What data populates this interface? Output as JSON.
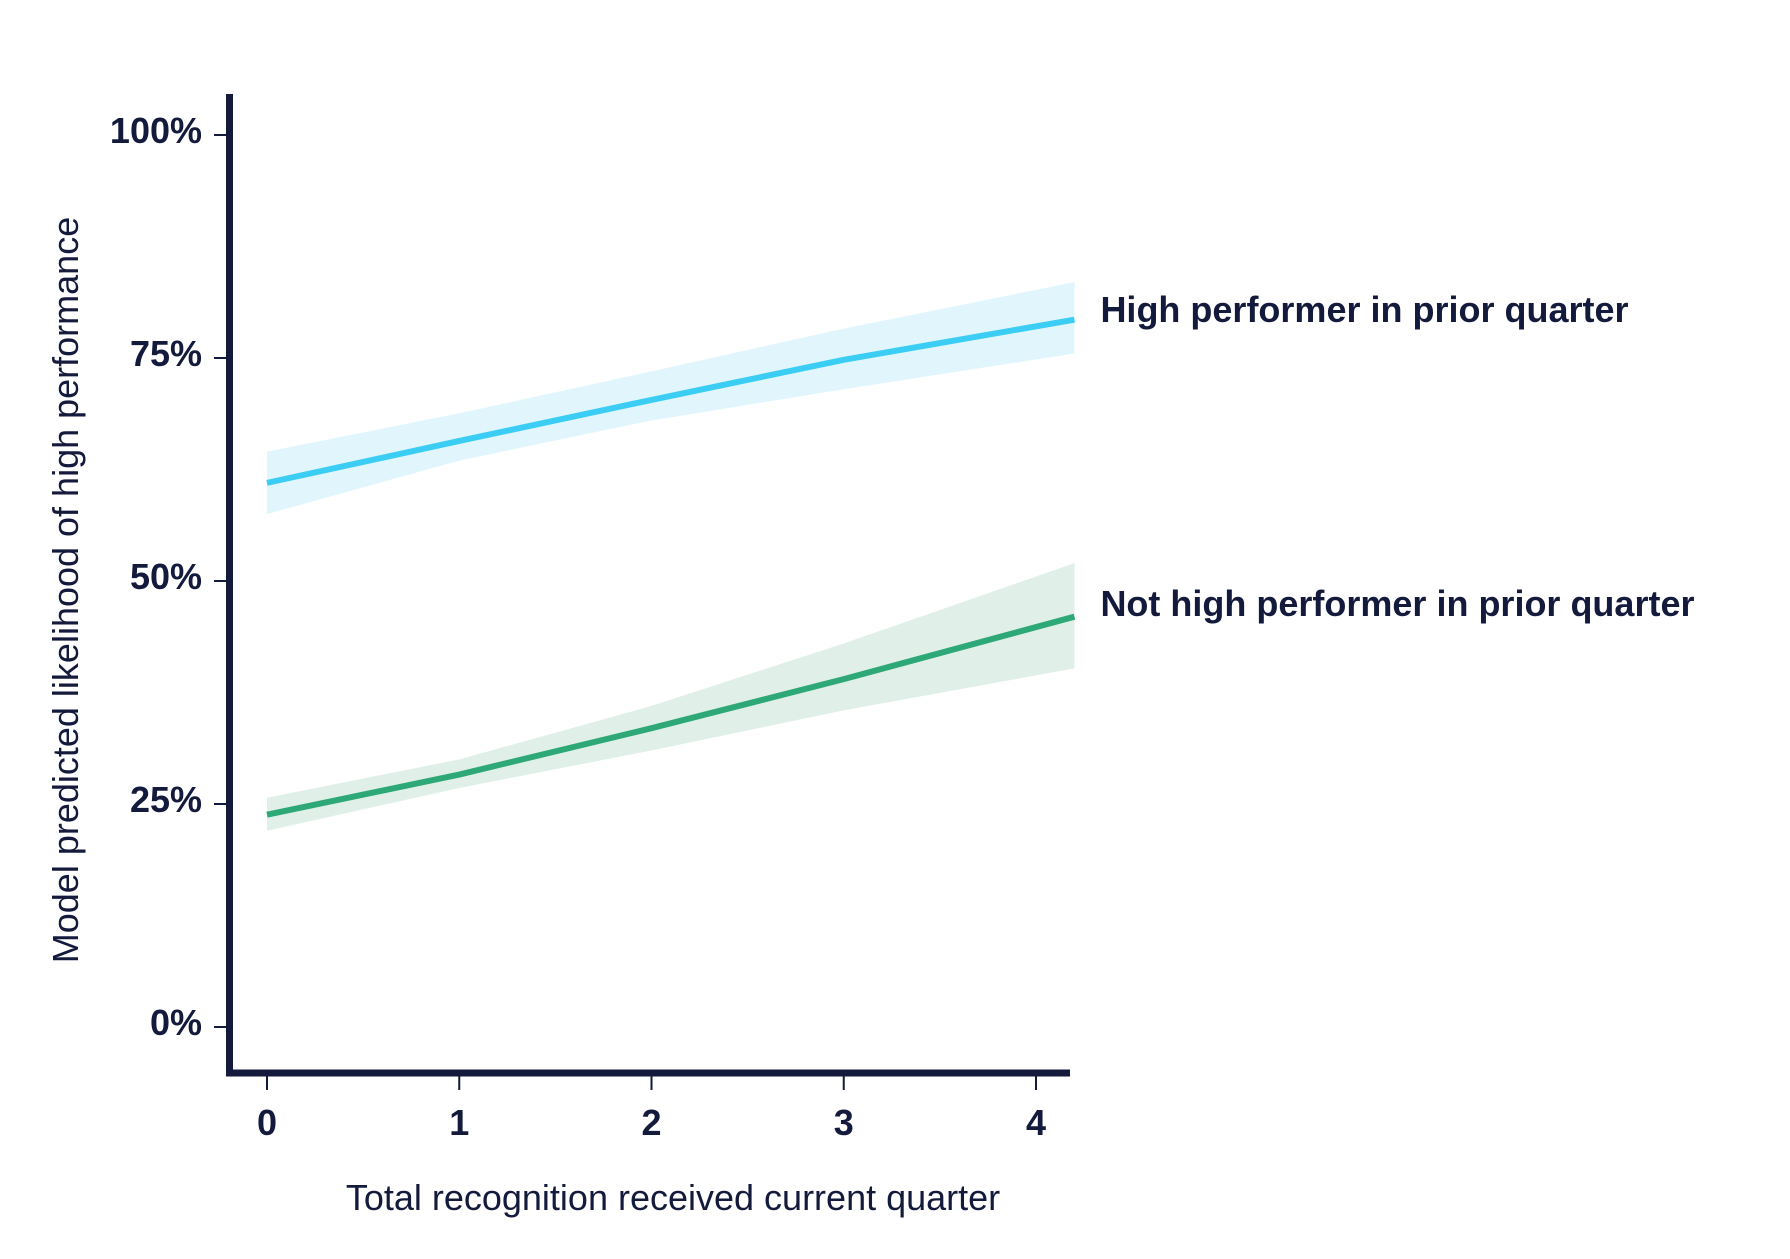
{
  "chart_data": {
    "type": "line",
    "title": "",
    "xlabel": "Total recognition received current quarter",
    "ylabel": "Model predicted likelihood of high performance",
    "xlim": [
      -0.2,
      4.2
    ],
    "ylim": [
      -5,
      105
    ],
    "x_ticks": [
      "0",
      "1",
      "2",
      "3",
      "4"
    ],
    "y_ticks": [
      "0%",
      "25%",
      "50%",
      "75%",
      "100%"
    ],
    "y_tick_values": [
      0,
      25,
      50,
      75,
      100
    ],
    "grid": false,
    "legend": "direct labels at right end of lines",
    "series": [
      {
        "name": "High performer in prior quarter",
        "color": "#3ccdf5",
        "band_color": "#e0f6fc",
        "x": [
          0,
          1,
          2,
          3,
          4.2
        ],
        "y": [
          61,
          65.7,
          70.3,
          74.8,
          79.3
        ],
        "lower": [
          57.5,
          63.5,
          68,
          71.5,
          75.5
        ],
        "upper": [
          64.5,
          68.8,
          73.5,
          78.3,
          83.5
        ]
      },
      {
        "name": "Not high performer in prior quarter",
        "color": "#2ea876",
        "band_color": "#e0f0e8",
        "x": [
          0,
          1,
          2,
          3,
          4.2
        ],
        "y": [
          23.8,
          28.3,
          33.5,
          39,
          46
        ],
        "lower": [
          22,
          26.8,
          31,
          35.5,
          40.2
        ],
        "upper": [
          25.7,
          30,
          36,
          43,
          52
        ]
      }
    ]
  },
  "axis_color": "#141a3c"
}
